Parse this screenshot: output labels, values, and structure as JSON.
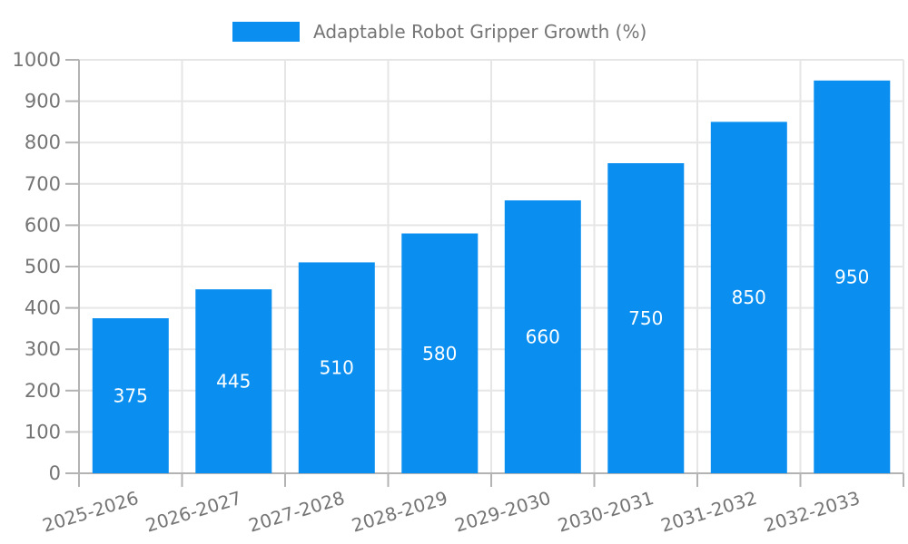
{
  "legend": {
    "label": "Adaptable Robot Gripper Growth (%)"
  },
  "chart_data": {
    "type": "bar",
    "title": "Adaptable Robot Gripper Growth (%)",
    "categories": [
      "2025-2026",
      "2026-2027",
      "2027-2028",
      "2028-2029",
      "2029-2030",
      "2030-2031",
      "2031-2032",
      "2032-2033"
    ],
    "values": [
      375,
      445,
      510,
      580,
      660,
      750,
      850,
      950
    ],
    "bar_labels": [
      "375",
      "445",
      "510",
      "580",
      "660",
      "750",
      "850",
      "950"
    ],
    "xlabel": "",
    "ylabel": "",
    "ylim": [
      0,
      1000
    ],
    "yticks": [
      0,
      100,
      200,
      300,
      400,
      500,
      600,
      700,
      800,
      900,
      1000
    ],
    "grid": true,
    "legend_position": "top-center",
    "x_tick_rotation": -17,
    "colors": {
      "bar": "#0A8FF0",
      "grid": "#e6e6e6",
      "axis": "#b3b3b3",
      "text": "#757575",
      "bar_label": "#ffffff",
      "background": "#ffffff"
    }
  }
}
